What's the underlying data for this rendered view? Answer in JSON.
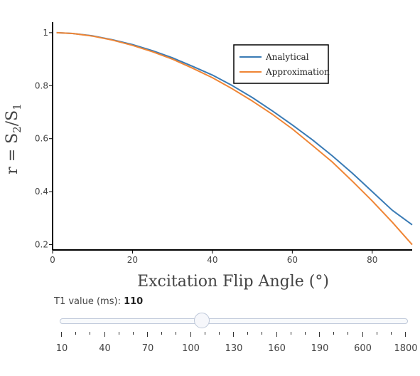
{
  "chart_data": {
    "type": "line",
    "xlabel": "Excitation Flip Angle (°)",
    "ylabel_parts": [
      "r = S",
      "2",
      "/S",
      "1"
    ],
    "xlim": [
      0,
      90
    ],
    "ylim": [
      0.18,
      1.04
    ],
    "x_ticks": [
      0,
      20,
      40,
      60,
      80
    ],
    "y_ticks": [
      0.2,
      0.4,
      0.6,
      0.8,
      1
    ],
    "y_tick_labels": [
      "0.2",
      "0.4",
      "0.6",
      "0.8",
      "1"
    ],
    "legend_position": "top-right",
    "series": [
      {
        "name": "Analytical",
        "color": "#3a7bb5",
        "x": [
          1,
          5,
          10,
          15,
          20,
          25,
          30,
          35,
          40,
          45,
          50,
          55,
          60,
          65,
          70,
          75,
          80,
          85,
          90
        ],
        "y": [
          1.0,
          0.997,
          0.988,
          0.973,
          0.955,
          0.932,
          0.905,
          0.873,
          0.84,
          0.8,
          0.755,
          0.705,
          0.652,
          0.596,
          0.535,
          0.47,
          0.4,
          0.33,
          0.275
        ]
      },
      {
        "name": "Approximation",
        "color": "#ef8535",
        "x": [
          1,
          5,
          10,
          15,
          20,
          25,
          30,
          35,
          40,
          45,
          50,
          55,
          60,
          65,
          70,
          75,
          80,
          85,
          90
        ],
        "y": [
          1.0,
          0.997,
          0.987,
          0.972,
          0.952,
          0.928,
          0.9,
          0.866,
          0.83,
          0.788,
          0.742,
          0.692,
          0.637,
          0.575,
          0.512,
          0.44,
          0.365,
          0.285,
          0.2
        ]
      }
    ]
  },
  "slider": {
    "label": "T1 value (ms): ",
    "value": "110",
    "steps": [
      "10",
      "40",
      "70",
      "100",
      "130",
      "160",
      "190",
      "600",
      "1800"
    ],
    "position_fraction": 0.41
  }
}
